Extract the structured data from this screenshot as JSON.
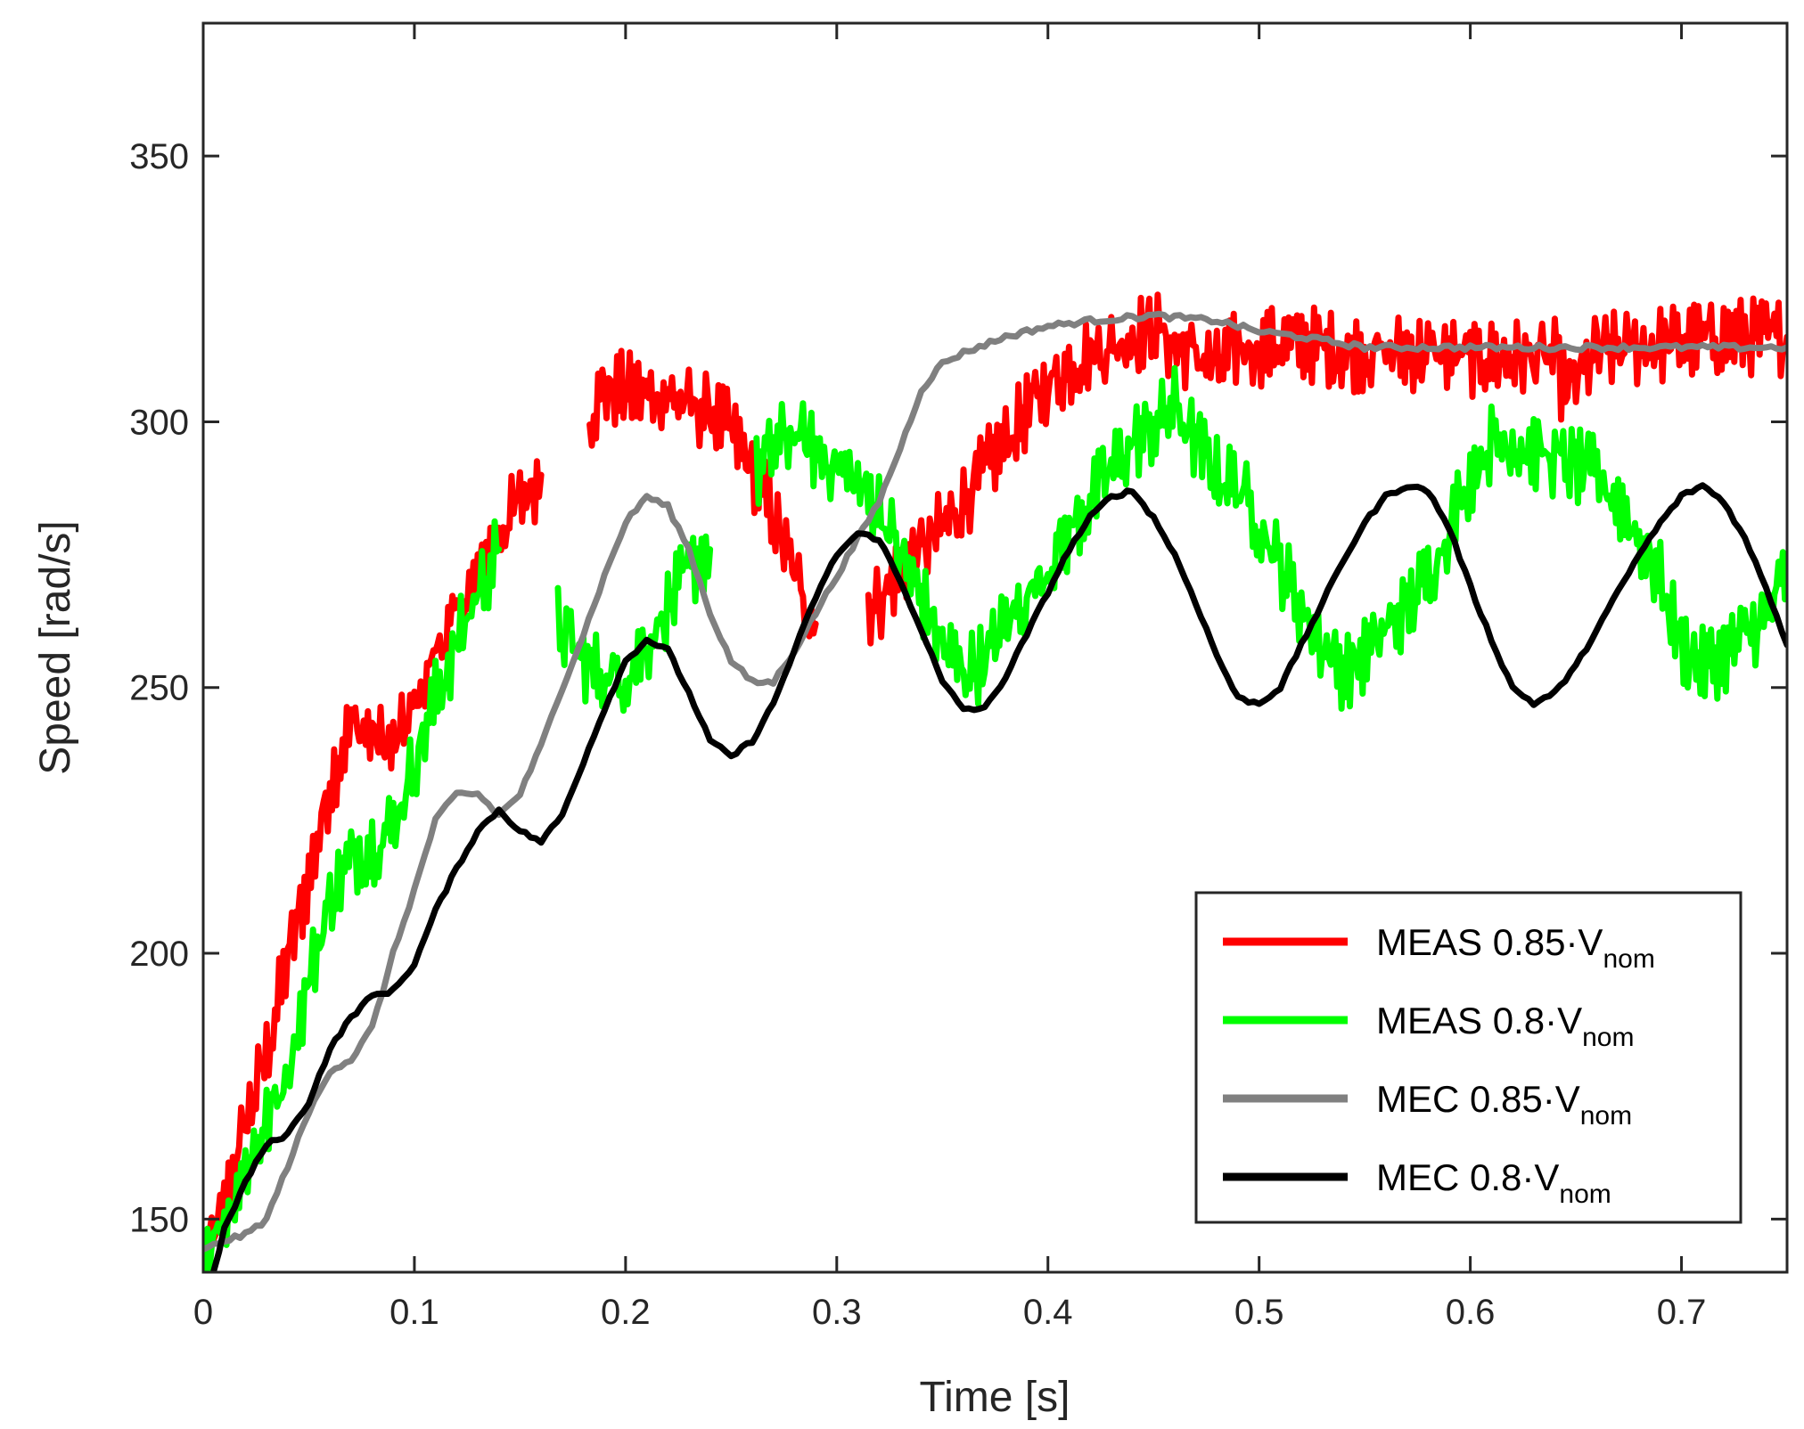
{
  "chart_data": {
    "type": "line",
    "title": "",
    "xlabel": "Time [s]",
    "ylabel": "Speed [rad/s]",
    "xlim": [
      0,
      0.75
    ],
    "ylim": [
      140,
      375
    ],
    "xticks": [
      0,
      0.1,
      0.2,
      0.3,
      0.4,
      0.5,
      0.6,
      0.7
    ],
    "xtick_labels": [
      "0",
      "0.1",
      "0.2",
      "0.3",
      "0.4",
      "0.5",
      "0.6",
      "0.7"
    ],
    "yticks": [
      150,
      200,
      250,
      300,
      350
    ],
    "ytick_labels": [
      "150",
      "200",
      "250",
      "300",
      "350"
    ],
    "grid": false,
    "legend_position": "bottom-right",
    "series": [
      {
        "name": "MEAS 0.85·V",
        "subscript": "nom",
        "color": "#ff0000",
        "noise": 5,
        "segments": [
          [
            [
              0,
              142
            ],
            [
              0.01,
              152
            ],
            [
              0.02,
              168
            ],
            [
              0.03,
              181
            ],
            [
              0.04,
              199
            ],
            [
              0.05,
              214
            ],
            [
              0.06,
              232
            ],
            [
              0.07,
              243
            ],
            [
              0.08,
              241
            ],
            [
              0.09,
              238
            ],
            [
              0.1,
              246
            ],
            [
              0.11,
              257
            ],
            [
              0.12,
              263
            ],
            [
              0.13,
              271
            ],
            [
              0.14,
              279
            ],
            [
              0.15,
              285
            ],
            [
              0.16,
              290
            ]
          ],
          [
            [
              0.183,
              301
            ],
            [
              0.19,
              306
            ],
            [
              0.2,
              306
            ],
            [
              0.21,
              305
            ],
            [
              0.22,
              305
            ],
            [
              0.23,
              303
            ],
            [
              0.24,
              302
            ],
            [
              0.25,
              298
            ],
            [
              0.26,
              291
            ],
            [
              0.27,
              282
            ],
            [
              0.28,
              271
            ],
            [
              0.29,
              262
            ]
          ],
          [
            [
              0.315,
              265
            ],
            [
              0.32,
              266
            ],
            [
              0.33,
              272
            ],
            [
              0.34,
              276
            ],
            [
              0.35,
              280
            ],
            [
              0.36,
              285
            ],
            [
              0.37,
              291
            ],
            [
              0.38,
              296
            ],
            [
              0.39,
              302
            ],
            [
              0.4,
              307
            ],
            [
              0.41,
              310
            ],
            [
              0.42,
              313
            ],
            [
              0.43,
              314
            ],
            [
              0.44,
              316
            ],
            [
              0.45,
              318
            ],
            [
              0.46,
              314
            ],
            [
              0.47,
              313
            ],
            [
              0.48,
              310
            ],
            [
              0.49,
              314
            ],
            [
              0.5,
              314
            ],
            [
              0.52,
              315
            ],
            [
              0.54,
              313
            ],
            [
              0.56,
              313
            ],
            [
              0.58,
              313
            ],
            [
              0.6,
              312
            ],
            [
              0.62,
              312
            ],
            [
              0.64,
              312
            ],
            [
              0.645,
              305
            ],
            [
              0.66,
              313
            ],
            [
              0.68,
              314
            ],
            [
              0.7,
              315
            ],
            [
              0.72,
              316
            ],
            [
              0.74,
              316
            ],
            [
              0.75,
              316
            ]
          ]
        ]
      },
      {
        "name": "MEAS 0.8·V",
        "subscript": "nom",
        "color": "#00ff00",
        "noise": 5,
        "segments": [
          [
            [
              0,
              144
            ],
            [
              0.01,
              150
            ],
            [
              0.02,
              160
            ],
            [
              0.03,
              168
            ],
            [
              0.04,
              178
            ],
            [
              0.05,
              195
            ],
            [
              0.06,
              210
            ],
            [
              0.07,
              218
            ],
            [
              0.08,
              220
            ],
            [
              0.09,
              224
            ],
            [
              0.1,
              236
            ],
            [
              0.11,
              248
            ],
            [
              0.12,
              258
            ],
            [
              0.13,
              268
            ],
            [
              0.14,
              276
            ]
          ],
          [
            [
              0.168,
              262
            ],
            [
              0.18,
              255
            ],
            [
              0.19,
              252
            ],
            [
              0.2,
              252
            ],
            [
              0.21,
              258
            ],
            [
              0.22,
              265
            ],
            [
              0.23,
              272
            ],
            [
              0.24,
              276
            ]
          ],
          [
            [
              0.262,
              290
            ],
            [
              0.27,
              295
            ],
            [
              0.28,
              298
            ],
            [
              0.29,
              294
            ],
            [
              0.3,
              292
            ],
            [
              0.31,
              288
            ],
            [
              0.32,
              284
            ],
            [
              0.33,
              275
            ],
            [
              0.34,
              267
            ],
            [
              0.35,
              258
            ],
            [
              0.36,
              253
            ],
            [
              0.37,
              255
            ],
            [
              0.38,
              262
            ],
            [
              0.39,
              267
            ],
            [
              0.4,
              273
            ],
            [
              0.41,
              279
            ],
            [
              0.42,
              285
            ],
            [
              0.43,
              291
            ],
            [
              0.44,
              296
            ],
            [
              0.45,
              299
            ],
            [
              0.46,
              303
            ],
            [
              0.47,
              296
            ],
            [
              0.48,
              290
            ],
            [
              0.49,
              288
            ],
            [
              0.5,
              281
            ],
            [
              0.51,
              273
            ],
            [
              0.52,
              265
            ],
            [
              0.53,
              258
            ],
            [
              0.54,
              253
            ],
            [
              0.55,
              256
            ],
            [
              0.56,
              261
            ],
            [
              0.57,
              265
            ],
            [
              0.58,
              271
            ],
            [
              0.59,
              280
            ],
            [
              0.6,
              290
            ],
            [
              0.61,
              296
            ],
            [
              0.62,
              296
            ],
            [
              0.66,
              290
            ],
            [
              0.67,
              285
            ],
            [
              0.68,
              278
            ],
            [
              0.69,
              270
            ],
            [
              0.7,
              258
            ],
            [
              0.71,
              254
            ],
            [
              0.72,
              256
            ],
            [
              0.73,
              260
            ],
            [
              0.74,
              263
            ],
            [
              0.75,
              272
            ]
          ]
        ]
      },
      {
        "name": "MEC 0.85·V",
        "subscript": "nom",
        "color": "#808080",
        "noise": 1,
        "segments": [
          [
            [
              0,
              144
            ],
            [
              0.01,
              146
            ],
            [
              0.02,
              147
            ],
            [
              0.03,
              150
            ],
            [
              0.04,
              160
            ],
            [
              0.05,
              170
            ],
            [
              0.06,
              178
            ],
            [
              0.07,
              180
            ],
            [
              0.08,
              186
            ],
            [
              0.09,
              200
            ],
            [
              0.1,
              212
            ],
            [
              0.11,
              225
            ],
            [
              0.12,
              230
            ],
            [
              0.13,
              230
            ],
            [
              0.14,
              226
            ],
            [
              0.15,
              230
            ],
            [
              0.16,
              239
            ],
            [
              0.17,
              250
            ],
            [
              0.18,
              260
            ],
            [
              0.19,
              271
            ],
            [
              0.2,
              281
            ],
            [
              0.21,
              286
            ],
            [
              0.22,
              284
            ],
            [
              0.23,
              276
            ],
            [
              0.24,
              264
            ],
            [
              0.25,
              255
            ],
            [
              0.26,
              251
            ],
            [
              0.27,
              251
            ],
            [
              0.28,
              257
            ],
            [
              0.29,
              264
            ],
            [
              0.3,
              271
            ],
            [
              0.31,
              278
            ],
            [
              0.32,
              285
            ],
            [
              0.33,
              295
            ],
            [
              0.34,
              306
            ],
            [
              0.35,
              311
            ],
            [
              0.36,
              313
            ],
            [
              0.38,
              316
            ],
            [
              0.4,
              318
            ],
            [
              0.42,
              319
            ],
            [
              0.45,
              320
            ],
            [
              0.48,
              319
            ],
            [
              0.5,
              317
            ],
            [
              0.52,
              316
            ],
            [
              0.55,
              314
            ],
            [
              0.6,
              314
            ],
            [
              0.65,
              314
            ],
            [
              0.7,
              314
            ],
            [
              0.75,
              314
            ]
          ]
        ]
      },
      {
        "name": "MEC 0.8·V",
        "subscript": "nom",
        "color": "#000000",
        "noise": 0.8,
        "segments": [
          [
            [
              0.005,
              140
            ],
            [
              0.01,
              148
            ],
            [
              0.02,
              157
            ],
            [
              0.03,
              164
            ],
            [
              0.04,
              166
            ],
            [
              0.05,
              172
            ],
            [
              0.06,
              182
            ],
            [
              0.07,
              188
            ],
            [
              0.08,
              192
            ],
            [
              0.09,
              193
            ],
            [
              0.1,
              198
            ],
            [
              0.11,
              208
            ],
            [
              0.12,
              216
            ],
            [
              0.13,
              223
            ],
            [
              0.14,
              227
            ],
            [
              0.15,
              223
            ],
            [
              0.16,
              221
            ],
            [
              0.17,
              226
            ],
            [
              0.18,
              236
            ],
            [
              0.19,
              246
            ],
            [
              0.2,
              255
            ],
            [
              0.21,
              259
            ],
            [
              0.22,
              257
            ],
            [
              0.23,
              249
            ],
            [
              0.24,
              240
            ],
            [
              0.25,
              237
            ],
            [
              0.26,
              240
            ],
            [
              0.27,
              247
            ],
            [
              0.28,
              257
            ],
            [
              0.29,
              267
            ],
            [
              0.3,
              275
            ],
            [
              0.31,
              279
            ],
            [
              0.32,
              278
            ],
            [
              0.33,
              270
            ],
            [
              0.34,
              261
            ],
            [
              0.35,
              251
            ],
            [
              0.36,
              246
            ],
            [
              0.37,
              246
            ],
            [
              0.38,
              252
            ],
            [
              0.39,
              260
            ],
            [
              0.4,
              268
            ],
            [
              0.41,
              276
            ],
            [
              0.42,
              282
            ],
            [
              0.43,
              286
            ],
            [
              0.44,
              287
            ],
            [
              0.45,
              282
            ],
            [
              0.46,
              275
            ],
            [
              0.47,
              266
            ],
            [
              0.48,
              256
            ],
            [
              0.49,
              248
            ],
            [
              0.5,
              247
            ],
            [
              0.51,
              250
            ],
            [
              0.52,
              258
            ],
            [
              0.53,
              266
            ],
            [
              0.54,
              274
            ],
            [
              0.55,
              281
            ],
            [
              0.56,
              286
            ],
            [
              0.57,
              288
            ],
            [
              0.58,
              287
            ],
            [
              0.59,
              280
            ],
            [
              0.6,
              269
            ],
            [
              0.61,
              259
            ],
            [
              0.62,
              250
            ],
            [
              0.63,
              247
            ],
            [
              0.64,
              249
            ],
            [
              0.65,
              254
            ],
            [
              0.66,
              261
            ],
            [
              0.67,
              268
            ],
            [
              0.68,
              275
            ],
            [
              0.69,
              281
            ],
            [
              0.7,
              286
            ],
            [
              0.71,
              288
            ],
            [
              0.72,
              285
            ],
            [
              0.73,
              278
            ],
            [
              0.74,
              269
            ],
            [
              0.75,
              258
            ]
          ]
        ]
      }
    ]
  }
}
